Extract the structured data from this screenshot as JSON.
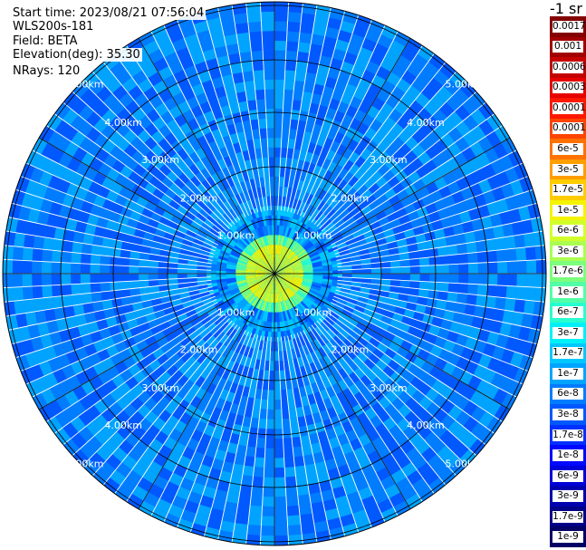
{
  "header": {
    "start_time": "Start time: 2023/08/21 07:56:04",
    "device": "WLS200s-181",
    "field": "Field: BETA",
    "elevation": "Elevation(deg): 35.30",
    "nrays": "NRays: 120"
  },
  "colorbar": {
    "title": "-1 sr",
    "levels": [
      {
        "label": "0.0017",
        "color": "#840000"
      },
      {
        "label": "0.001",
        "color": "#a20000"
      },
      {
        "label": "0.0006",
        "color": "#c40000"
      },
      {
        "label": "0.0003",
        "color": "#e60000"
      },
      {
        "label": "0.00017",
        "color": "#ff1800"
      },
      {
        "label": "0.0001",
        "color": "#ff4400"
      },
      {
        "label": "6e-5",
        "color": "#ff7200"
      },
      {
        "label": "3e-5",
        "color": "#ff9e00"
      },
      {
        "label": "1.7e-5",
        "color": "#ffcc00"
      },
      {
        "label": "1e-5",
        "color": "#f4f400"
      },
      {
        "label": "6e-6",
        "color": "#d2ff2a"
      },
      {
        "label": "3e-6",
        "color": "#aaff50"
      },
      {
        "label": "1.7e-6",
        "color": "#7cff7c"
      },
      {
        "label": "1e-6",
        "color": "#52ffa6"
      },
      {
        "label": "6e-7",
        "color": "#28ffd0"
      },
      {
        "label": "3e-7",
        "color": "#00f0f8"
      },
      {
        "label": "1.7e-7",
        "color": "#00c8ff"
      },
      {
        "label": "1e-7",
        "color": "#00a4ff"
      },
      {
        "label": "6e-8",
        "color": "#007cff"
      },
      {
        "label": "3e-8",
        "color": "#0058ff"
      },
      {
        "label": "1.7e-8",
        "color": "#0030ff"
      },
      {
        "label": "1e-8",
        "color": "#0008ff"
      },
      {
        "label": "6e-9",
        "color": "#0000d8"
      },
      {
        "label": "3e-9",
        "color": "#0000b0"
      },
      {
        "label": "1.7e-9",
        "color": "#000088"
      },
      {
        "label": "1e-9",
        "color": "#000066"
      }
    ]
  },
  "chart_data": {
    "type": "heatmap",
    "projection": "polar (plan position indicator)",
    "field": "BETA",
    "elevation_deg": 35.3,
    "nrays": 120,
    "range_rings": [
      "1.00km",
      "2.00km",
      "3.00km",
      "4.00km",
      "5.00km"
    ],
    "range_km": [
      1,
      2,
      3,
      4,
      5
    ],
    "scale": "log",
    "background_level": "3e-8",
    "near_field_level": "1.7e-5",
    "colors": {
      "background": "#1a7ae8",
      "near_field": "#f4f400",
      "ring_line": "#000000"
    }
  }
}
